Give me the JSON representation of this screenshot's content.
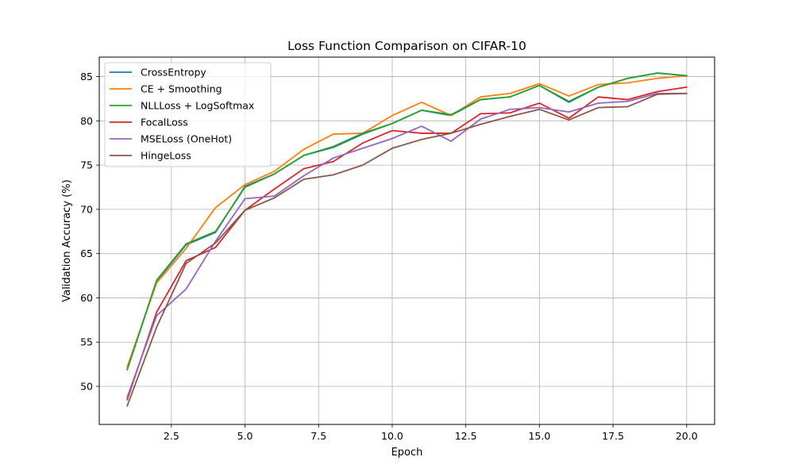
{
  "chart_data": {
    "type": "line",
    "title": "Loss Function Comparison on CIFAR-10",
    "xlabel": "Epoch",
    "ylabel": "Validation Accuracy (%)",
    "xlim": [
      0.05,
      20.95
    ],
    "ylim": [
      45.7,
      87.2
    ],
    "xticks": [
      2.5,
      5.0,
      7.5,
      10.0,
      12.5,
      15.0,
      17.5,
      20.0
    ],
    "xtick_labels": [
      "2.5",
      "5.0",
      "7.5",
      "10.0",
      "12.5",
      "15.0",
      "17.5",
      "20.0"
    ],
    "yticks": [
      50,
      55,
      60,
      65,
      70,
      75,
      80,
      85
    ],
    "ytick_labels": [
      "50",
      "55",
      "60",
      "65",
      "70",
      "75",
      "80",
      "85"
    ],
    "grid": true,
    "legend_position": "top-left",
    "x": [
      1,
      2,
      3,
      4,
      5,
      6,
      7,
      8,
      9,
      10,
      11,
      12,
      13,
      14,
      15,
      16,
      17,
      18,
      19,
      20
    ],
    "series": [
      {
        "name": "CrossEntropy",
        "color": "#1f77b4",
        "values": [
          51.9,
          61.9,
          66.0,
          67.4,
          72.6,
          74.0,
          76.1,
          77.0,
          78.5,
          79.7,
          81.2,
          80.6,
          82.4,
          82.7,
          84.0,
          82.1,
          83.8,
          84.8,
          85.4,
          85.1
        ]
      },
      {
        "name": "CE + Smoothing",
        "color": "#ff7f0e",
        "values": [
          52.2,
          61.7,
          65.6,
          70.2,
          72.8,
          74.3,
          76.8,
          78.5,
          78.6,
          80.6,
          82.1,
          80.6,
          82.7,
          83.1,
          84.2,
          82.8,
          84.1,
          84.3,
          84.8,
          85.1
        ]
      },
      {
        "name": "NLLLoss + LogSoftmax",
        "color": "#2ca02c",
        "values": [
          51.9,
          62.0,
          66.1,
          67.5,
          72.5,
          74.0,
          76.1,
          77.1,
          78.6,
          79.7,
          81.2,
          80.7,
          82.4,
          82.7,
          84.0,
          82.2,
          83.8,
          84.8,
          85.4,
          85.1
        ]
      },
      {
        "name": "FocalLoss",
        "color": "#d62728",
        "values": [
          48.5,
          58.4,
          64.2,
          65.7,
          69.9,
          72.3,
          74.6,
          75.4,
          77.5,
          78.9,
          78.6,
          78.6,
          80.8,
          80.9,
          82.0,
          80.3,
          82.7,
          82.4,
          83.3,
          83.8
        ]
      },
      {
        "name": "MSELoss (OneHot)",
        "color": "#9467bd",
        "values": [
          48.8,
          58.0,
          61.0,
          66.4,
          71.2,
          71.5,
          73.8,
          75.8,
          76.9,
          78.0,
          79.4,
          77.7,
          80.2,
          81.3,
          81.5,
          81.0,
          82.0,
          82.2,
          83.1,
          83.1
        ]
      },
      {
        "name": "HingeLoss",
        "color": "#8c564b",
        "values": [
          47.8,
          56.7,
          63.9,
          66.2,
          69.9,
          71.3,
          73.4,
          73.9,
          75.0,
          76.9,
          77.9,
          78.6,
          79.6,
          80.5,
          81.3,
          80.1,
          81.5,
          81.6,
          83.0,
          83.1
        ]
      }
    ]
  }
}
